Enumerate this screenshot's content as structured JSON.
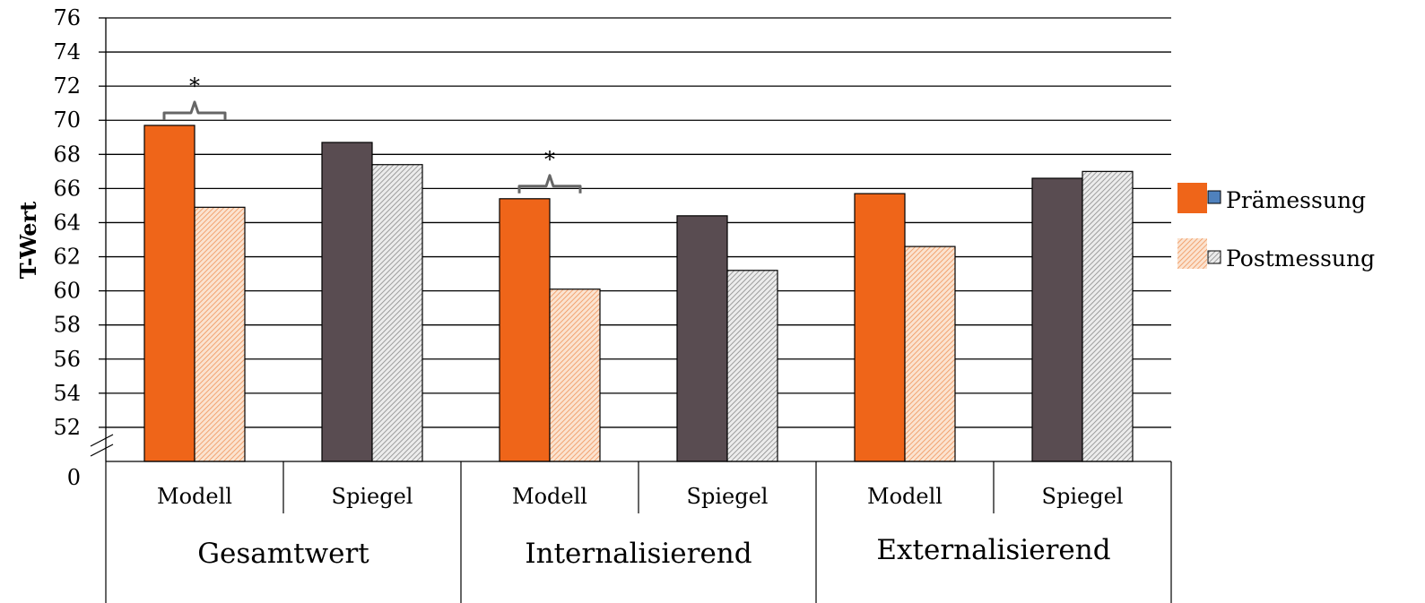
{
  "chart_data": {
    "type": "bar",
    "ylabel": "T-Wert",
    "yticks": [
      "0",
      "52",
      "54",
      "56",
      "58",
      "60",
      "62",
      "64",
      "66",
      "68",
      "70",
      "72",
      "74",
      "76"
    ],
    "ylim": [
      50,
      76
    ],
    "axis_break": true,
    "grid": true,
    "legend_position": "right",
    "groups": [
      "Gesamtwert",
      "Internalisierend",
      "Externalisierend"
    ],
    "categories": [
      "Modell",
      "Spiegel",
      "Modell",
      "Spiegel",
      "Modell",
      "Spiegel"
    ],
    "series": [
      {
        "name": "Prämessung",
        "values": [
          69.7,
          68.7,
          65.4,
          64.4,
          65.7,
          66.6
        ]
      },
      {
        "name": "Postmessung",
        "values": [
          64.9,
          67.4,
          60.1,
          61.2,
          62.6,
          67.0
        ]
      }
    ],
    "significance": [
      {
        "category_index": 0,
        "label": "*"
      },
      {
        "category_index": 2,
        "label": "*"
      }
    ]
  },
  "colors": {
    "pre_modell": "#ef6519",
    "pre_spiegel": "#594c51",
    "post_modell": "#f6c7a6",
    "post_spiegel": "#d2d2d2",
    "legend_swatch_pre": "#4f81bd",
    "grid": "#000000",
    "bracket": "#666666"
  }
}
